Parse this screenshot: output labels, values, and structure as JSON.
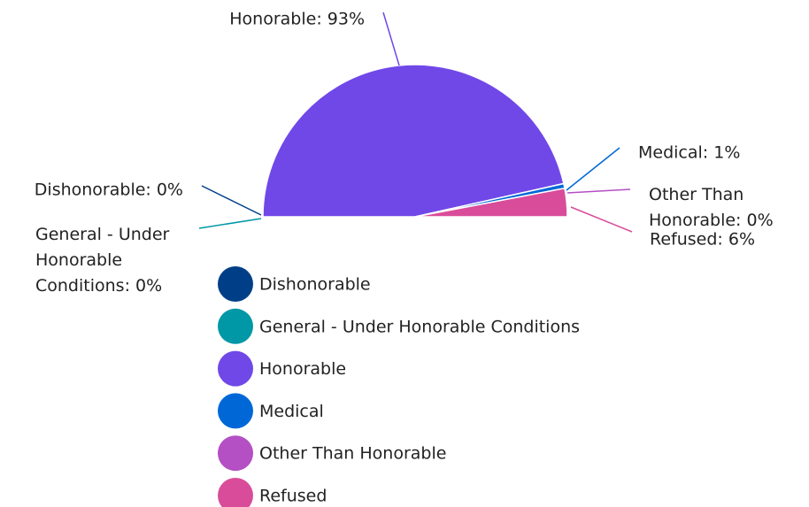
{
  "chart_data": {
    "type": "half-pie",
    "categories": [
      "Dishonorable",
      "General - Under Honorable Conditions",
      "Honorable",
      "Medical",
      "Other Than Honorable",
      "Refused"
    ],
    "values": [
      0,
      0,
      93,
      1,
      0,
      6
    ],
    "value_labels": [
      "Dishonorable: 0%",
      "General - Under Honorable Conditions: 0%",
      "Honorable: 93%",
      "Medical: 1%",
      "Other Than Honorable: 0%",
      "Refused: 6%"
    ],
    "colors": [
      "#003f87",
      "#0097a7",
      "#7048e8",
      "#0068d6",
      "#b44fc4",
      "#d94c9a"
    ],
    "legend": "bottom"
  }
}
